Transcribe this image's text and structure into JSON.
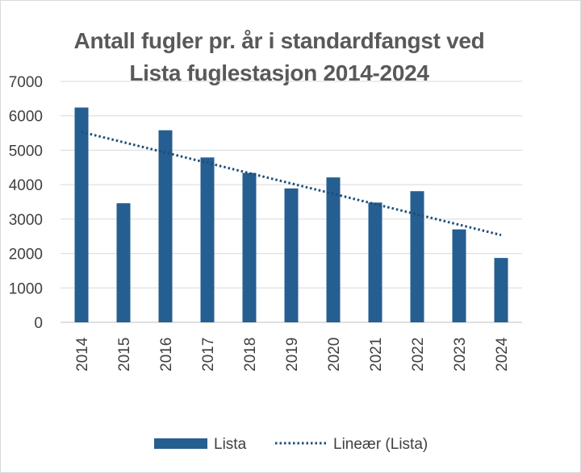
{
  "chart_data": {
    "type": "bar",
    "title_lines": [
      "Antall fugler pr. år i standardfangst ved",
      "Lista fuglestasjon 2014-2024"
    ],
    "categories": [
      "2014",
      "2015",
      "2016",
      "2017",
      "2018",
      "2019",
      "2020",
      "2021",
      "2022",
      "2023",
      "2024"
    ],
    "series": [
      {
        "name": "Lista",
        "color": "#255e91",
        "values": [
          6240,
          3460,
          5580,
          4790,
          4340,
          3890,
          4210,
          3480,
          3810,
          2700,
          1870
        ]
      }
    ],
    "trendline": {
      "name": "Lineær (Lista)",
      "type": "linear",
      "color": "#1f4e79",
      "style": "dotted"
    },
    "y_ticks": [
      "0",
      "1000",
      "2000",
      "3000",
      "4000",
      "5000",
      "6000",
      "7000"
    ],
    "ylim": [
      0,
      7000
    ],
    "xlabel": "",
    "ylabel": "",
    "grid": true,
    "x_tick_rotation": "vertical",
    "legend_position": "bottom"
  }
}
